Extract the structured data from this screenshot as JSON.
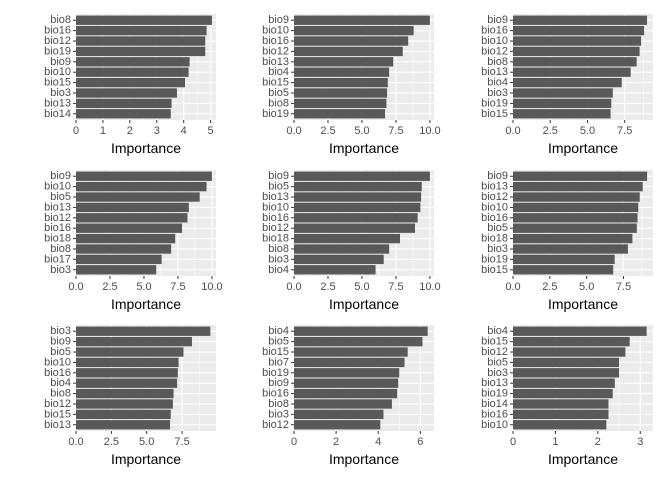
{
  "figure": {
    "background": "#ffffff",
    "panel_background": "#ebebeb",
    "grid_color": "#ffffff",
    "bar_color": "#595959"
  },
  "chart_data": [
    {
      "type": "bar",
      "orientation": "horizontal",
      "xlabel": "Importance",
      "xlim": [
        0,
        5.2
      ],
      "xticks": [
        0,
        1,
        2,
        3,
        4,
        5
      ],
      "xtick_labels": [
        "0",
        "1",
        "2",
        "3",
        "4",
        "5"
      ],
      "categories": [
        "bio8",
        "bio16",
        "bio12",
        "bio19",
        "bio9",
        "bio10",
        "bio15",
        "bio3",
        "bio13",
        "bio14"
      ],
      "values": [
        5.05,
        4.85,
        4.8,
        4.8,
        4.22,
        4.18,
        4.05,
        3.75,
        3.55,
        3.52
      ]
    },
    {
      "type": "bar",
      "orientation": "horizontal",
      "xlabel": "Importance",
      "xlim": [
        0,
        10.3
      ],
      "xticks": [
        0,
        2.5,
        5,
        7.5,
        10
      ],
      "xtick_labels": [
        "0.0",
        "2.5",
        "5.0",
        "7.5",
        "10.0"
      ],
      "categories": [
        "bio9",
        "bio10",
        "bio16",
        "bio12",
        "bio13",
        "bio4",
        "bio15",
        "bio5",
        "bio8",
        "bio19"
      ],
      "values": [
        10.0,
        8.8,
        8.4,
        8.0,
        7.3,
        7.0,
        6.9,
        6.85,
        6.8,
        6.7
      ]
    },
    {
      "type": "bar",
      "orientation": "horizontal",
      "xlabel": "Importance",
      "xlim": [
        0,
        9.4
      ],
      "xticks": [
        0,
        2.5,
        5,
        7.5
      ],
      "xtick_labels": [
        "0.0",
        "2.5",
        "5.0",
        "7.5"
      ],
      "categories": [
        "bio9",
        "bio16",
        "bio10",
        "bio12",
        "bio8",
        "bio13",
        "bio4",
        "bio3",
        "bio19",
        "bio15"
      ],
      "values": [
        9.0,
        8.8,
        8.6,
        8.5,
        8.3,
        7.9,
        7.3,
        6.7,
        6.6,
        6.55
      ]
    },
    {
      "type": "bar",
      "orientation": "horizontal",
      "xlabel": "Importance",
      "xlim": [
        0,
        10.3
      ],
      "xticks": [
        0,
        2.5,
        5,
        7.5,
        10
      ],
      "xtick_labels": [
        "0.0",
        "2.5",
        "5.0",
        "7.5",
        "10.0"
      ],
      "categories": [
        "bio9",
        "bio10",
        "bio5",
        "bio13",
        "bio12",
        "bio16",
        "bio18",
        "bio8",
        "bio17",
        "bio3"
      ],
      "values": [
        10.0,
        9.6,
        9.1,
        8.3,
        8.2,
        7.8,
        7.3,
        7.0,
        6.3,
        5.9
      ]
    },
    {
      "type": "bar",
      "orientation": "horizontal",
      "xlabel": "Importance",
      "xlim": [
        0,
        10.3
      ],
      "xticks": [
        0,
        2.5,
        5,
        7.5,
        10
      ],
      "xtick_labels": [
        "0.0",
        "2.5",
        "5.0",
        "7.5",
        "10.0"
      ],
      "categories": [
        "bio9",
        "bio5",
        "bio13",
        "bio10",
        "bio16",
        "bio12",
        "bio18",
        "bio8",
        "bio3",
        "bio4"
      ],
      "values": [
        10.0,
        9.4,
        9.35,
        9.3,
        9.1,
        8.9,
        7.8,
        7.0,
        6.6,
        6.0
      ]
    },
    {
      "type": "bar",
      "orientation": "horizontal",
      "xlabel": "Importance",
      "xlim": [
        0,
        9.5
      ],
      "xticks": [
        0,
        2.5,
        5,
        7.5
      ],
      "xtick_labels": [
        "0.0",
        "2.5",
        "5.0",
        "7.5"
      ],
      "categories": [
        "bio9",
        "bio13",
        "bio12",
        "bio10",
        "bio16",
        "bio5",
        "bio18",
        "bio3",
        "bio19",
        "bio15"
      ],
      "values": [
        9.1,
        8.8,
        8.6,
        8.5,
        8.45,
        8.4,
        8.1,
        7.8,
        6.9,
        6.8
      ]
    },
    {
      "type": "bar",
      "orientation": "horizontal",
      "xlabel": "Importance",
      "xlim": [
        0,
        9.9
      ],
      "xticks": [
        0,
        2.5,
        5,
        7.5
      ],
      "xtick_labels": [
        "0.0",
        "2.5",
        "5.0",
        "7.5"
      ],
      "categories": [
        "bio3",
        "bio9",
        "bio5",
        "bio10",
        "bio16",
        "bio4",
        "bio8",
        "bio12",
        "bio15",
        "bio13"
      ],
      "values": [
        9.5,
        8.2,
        7.6,
        7.25,
        7.2,
        7.15,
        6.9,
        6.85,
        6.7,
        6.65
      ]
    },
    {
      "type": "bar",
      "orientation": "horizontal",
      "xlabel": "Importance",
      "xlim": [
        0,
        6.65
      ],
      "xticks": [
        0,
        2,
        4,
        6
      ],
      "xtick_labels": [
        "0",
        "2",
        "4",
        "6"
      ],
      "categories": [
        "bio4",
        "bio5",
        "bio15",
        "bio7",
        "bio19",
        "bio9",
        "bio16",
        "bio8",
        "bio3",
        "bio12"
      ],
      "values": [
        6.35,
        6.1,
        5.4,
        5.25,
        5.0,
        4.95,
        4.9,
        4.65,
        4.25,
        4.1
      ]
    },
    {
      "type": "bar",
      "orientation": "horizontal",
      "xlabel": "Importance",
      "xlim": [
        0,
        3.3
      ],
      "xticks": [
        0,
        1,
        2,
        3
      ],
      "xtick_labels": [
        "0",
        "1",
        "2",
        "3"
      ],
      "categories": [
        "bio4",
        "bio15",
        "bio12",
        "bio5",
        "bio3",
        "bio13",
        "bio19",
        "bio14",
        "bio16",
        "bio10"
      ],
      "values": [
        3.15,
        2.75,
        2.65,
        2.5,
        2.5,
        2.4,
        2.35,
        2.25,
        2.25,
        2.2
      ]
    }
  ]
}
